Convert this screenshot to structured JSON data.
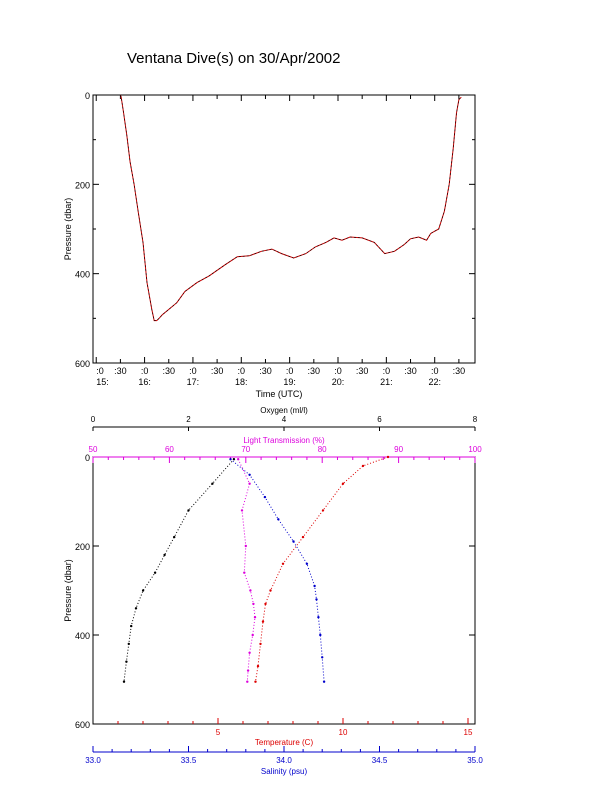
{
  "title": "Ventana Dive(s) on 30/Apr/2002",
  "colors": {
    "oxygen": "#000000",
    "light_transmission": "#dd00dd",
    "temperature": "#dd0000",
    "salinity": "#0000cc",
    "pressure_trace": "#cc0000"
  },
  "chart_data": [
    {
      "type": "line",
      "id": "pressure_vs_time",
      "xlabel": "Time (UTC)",
      "ylabel": "Pressure (dbar)",
      "x_unit": "minutes after 15:00 UTC",
      "xlim": [
        -4,
        470
      ],
      "ylim": [
        0,
        600
      ],
      "y_inverted": true,
      "yticks": [
        0,
        200,
        400,
        600
      ],
      "minute_ticks": [
        ":0",
        ":30",
        ":0",
        ":30",
        ":0",
        ":30",
        ":0",
        ":30",
        ":0",
        ":30",
        ":0",
        ":30",
        ":0",
        ":30",
        ":0",
        ":30"
      ],
      "hour_ticks": [
        "15:",
        "16:",
        "17:",
        "18:",
        "19:",
        "20:",
        "21:",
        "22:"
      ],
      "series": [
        {
          "x": [
            30,
            31,
            34,
            38,
            42,
            47,
            52,
            58,
            63,
            69,
            72,
            75,
            78,
            82,
            90,
            100,
            110,
            125,
            140,
            160,
            175,
            190,
            205,
            218,
            230,
            245,
            260,
            272,
            285,
            295,
            305,
            315,
            330,
            345,
            358,
            370,
            382,
            390,
            400,
            410,
            415,
            420,
            425,
            432,
            438,
            443,
            447,
            450,
            453
          ],
          "y": [
            0,
            5,
            40,
            90,
            150,
            200,
            260,
            330,
            420,
            480,
            505,
            505,
            500,
            492,
            480,
            465,
            440,
            420,
            405,
            380,
            362,
            360,
            350,
            345,
            355,
            365,
            355,
            340,
            330,
            320,
            325,
            318,
            320,
            330,
            355,
            350,
            335,
            322,
            318,
            325,
            310,
            305,
            300,
            260,
            200,
            120,
            40,
            10,
            5
          ]
        }
      ]
    },
    {
      "type": "scatter",
      "id": "profiles_vs_pressure",
      "ylabel": "Pressure (dbar)",
      "ylim": [
        0,
        600
      ],
      "y_inverted": true,
      "yticks": [
        0,
        200,
        400,
        600
      ],
      "axes": {
        "oxygen": {
          "label": "Oxygen (ml/l)",
          "range": [
            0,
            8
          ],
          "ticks": [
            "0",
            "2",
            "4",
            "6",
            "8"
          ]
        },
        "light_transmission": {
          "label": "Light Transmission (%)",
          "range": [
            50,
            100
          ],
          "ticks": [
            "50",
            "60",
            "70",
            "80",
            "90",
            "100"
          ]
        },
        "temperature": {
          "label": "Temperature (C)",
          "range": [
            0,
            16
          ],
          "ticks": [
            "5",
            "10",
            "15"
          ]
        },
        "salinity": {
          "label": "Salinity (psu)",
          "range": [
            33.0,
            35.0
          ],
          "ticks": [
            "33.0",
            "33.5",
            "34.0",
            "34.5",
            "35.0"
          ]
        }
      },
      "series": [
        {
          "name": "oxygen",
          "x": [
            2.95,
            2.5,
            2.0,
            1.7,
            1.5,
            1.3,
            1.05,
            0.9,
            0.8,
            0.75,
            0.7,
            0.65
          ],
          "y": [
            5,
            60,
            120,
            180,
            220,
            260,
            300,
            340,
            380,
            420,
            460,
            505
          ]
        },
        {
          "name": "light_transmission",
          "x": [
            69,
            70.5,
            69.5,
            70,
            69.8,
            70.6,
            71,
            71.2,
            70.9,
            70.5,
            70.3,
            70.2
          ],
          "y": [
            5,
            60,
            120,
            200,
            260,
            300,
            330,
            360,
            400,
            440,
            480,
            505
          ]
        },
        {
          "name": "temperature",
          "x": [
            11.8,
            10.8,
            10.0,
            9.2,
            8.4,
            7.6,
            7.1,
            6.9,
            6.8,
            6.7,
            6.6,
            6.5
          ],
          "y": [
            0,
            20,
            60,
            120,
            180,
            240,
            300,
            330,
            370,
            420,
            470,
            505
          ]
        },
        {
          "name": "salinity",
          "x": [
            33.72,
            33.82,
            33.9,
            33.97,
            34.05,
            34.12,
            34.16,
            34.17,
            34.18,
            34.19,
            34.2,
            34.21
          ],
          "y": [
            5,
            40,
            90,
            140,
            190,
            240,
            290,
            320,
            360,
            400,
            450,
            505
          ]
        }
      ]
    }
  ]
}
